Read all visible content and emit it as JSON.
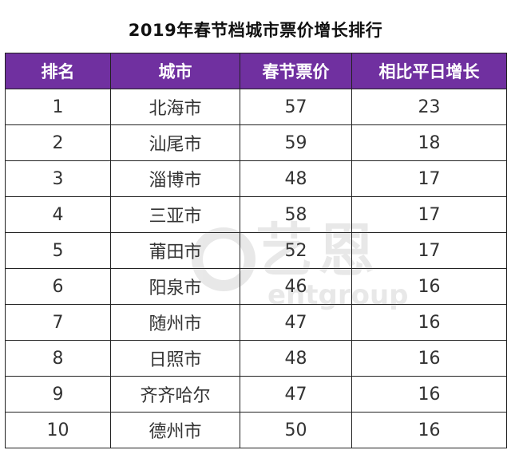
{
  "title": "2019年春节档城市票价增长排行",
  "watermark": {
    "cn": "艺恩",
    "en": "entgroup"
  },
  "chart_data": {
    "type": "table",
    "title": "2019年春节档城市票价增长排行",
    "columns": [
      "排名",
      "城市",
      "春节票价",
      "相比平日增长"
    ],
    "rows": [
      [
        "1",
        "北海市",
        "57",
        "23"
      ],
      [
        "2",
        "汕尾市",
        "59",
        "18"
      ],
      [
        "3",
        "淄博市",
        "48",
        "17"
      ],
      [
        "4",
        "三亚市",
        "58",
        "17"
      ],
      [
        "5",
        "莆田市",
        "52",
        "17"
      ],
      [
        "6",
        "阳泉市",
        "46",
        "16"
      ],
      [
        "7",
        "随州市",
        "47",
        "16"
      ],
      [
        "8",
        "日照市",
        "48",
        "16"
      ],
      [
        "9",
        "齐齐哈尔",
        "47",
        "16"
      ],
      [
        "10",
        "德州市",
        "50",
        "16"
      ]
    ],
    "header_color": "#7030a0"
  }
}
